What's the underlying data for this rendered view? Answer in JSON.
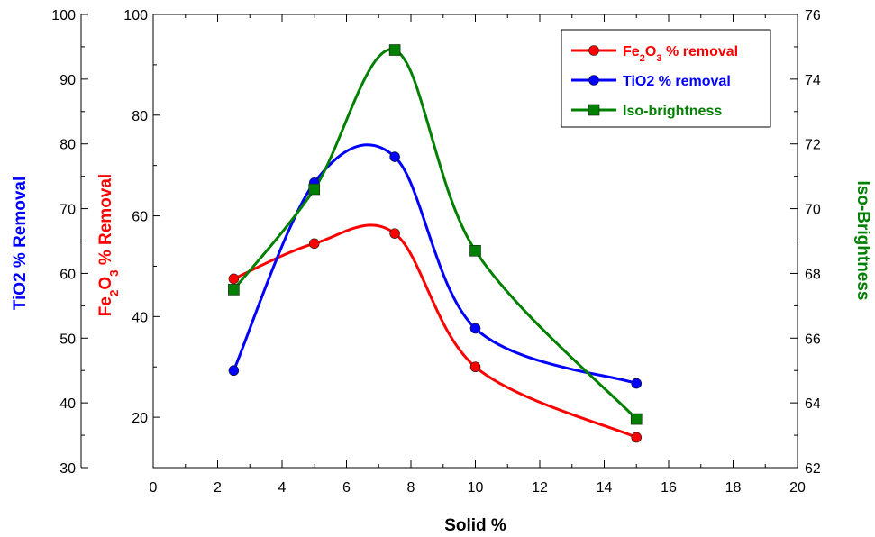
{
  "chart_data": {
    "type": "line",
    "x": [
      2.5,
      5,
      7.5,
      10,
      15
    ],
    "xlabel": "Solid %",
    "xlim": [
      0,
      20
    ],
    "xticks": [
      "0",
      "2",
      "4",
      "6",
      "8",
      "10",
      "12",
      "14",
      "16",
      "18",
      "20"
    ],
    "series": [
      {
        "name": "Fe2O3 % removal",
        "axis": "Fe2O3 % Removal",
        "color": "#ff0000",
        "marker": "circle",
        "values": [
          47.5,
          54.5,
          56.5,
          30,
          16
        ]
      },
      {
        "name": "TiO2 % removal",
        "axis": "TiO2 % Removal",
        "color": "#0000ff",
        "marker": "circle",
        "values": [
          45,
          74,
          78,
          51.5,
          43
        ]
      },
      {
        "name": "Iso-brightness",
        "axis": "Iso-Brightness",
        "color": "#008000",
        "marker": "square",
        "values": [
          67.5,
          70.6,
          74.9,
          68.7,
          63.5
        ]
      }
    ],
    "axes": {
      "fe2o3": {
        "label": "Fe2O3 % Removal",
        "color": "#ff0000",
        "ylim": [
          10,
          100
        ],
        "ticks": [
          "20",
          "40",
          "60",
          "80",
          "100"
        ]
      },
      "tio2": {
        "label": "TiO2 % Removal",
        "color": "#0000ff",
        "ylim": [
          30,
          100
        ],
        "ticks": [
          "30",
          "40",
          "50",
          "60",
          "70",
          "80",
          "90",
          "100"
        ]
      },
      "brightness": {
        "label": "Iso-Brightness",
        "color": "#008000",
        "ylim": [
          62,
          76
        ],
        "ticks": [
          "62",
          "64",
          "66",
          "68",
          "70",
          "72",
          "74",
          "76"
        ]
      }
    },
    "legend": {
      "position": "top-right",
      "entries": [
        {
          "label": "Fe2O3 % removal",
          "color": "#ff0000",
          "marker": "circle"
        },
        {
          "label": "TiO2 % removal",
          "color": "#0000ff",
          "marker": "circle"
        },
        {
          "label": "Iso-brightness",
          "color": "#008000",
          "marker": "square"
        }
      ]
    },
    "grid": false
  }
}
